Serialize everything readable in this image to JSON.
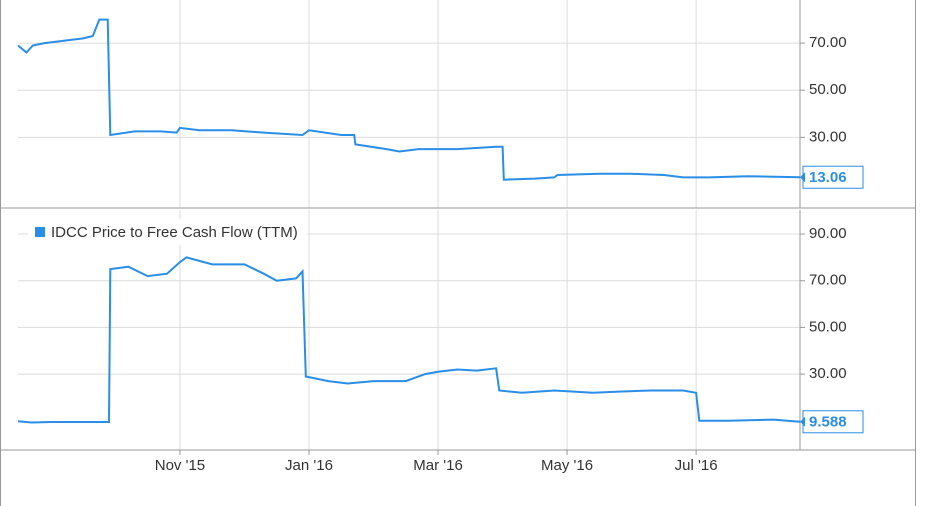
{
  "chart_data": [
    {
      "type": "line",
      "xlim": [
        8.49,
        20.61
      ],
      "ylim": [
        0,
        88.3
      ],
      "yticks": [
        {
          "value": 30,
          "label": "30.00"
        },
        {
          "value": 50,
          "label": "50.00"
        },
        {
          "value": 70,
          "label": "70.00"
        }
      ],
      "grid": true,
      "series": [
        {
          "color": "#2a8ee8",
          "x": [
            8.49,
            8.62,
            8.72,
            8.9,
            9.2,
            9.5,
            9.65,
            9.75,
            9.88,
            9.92,
            10.3,
            10.7,
            10.95,
            11.0,
            11.3,
            11.8,
            12.3,
            12.9,
            13.0,
            13.5,
            13.7,
            13.72,
            14.2,
            14.4,
            14.7,
            15.3,
            15.9,
            16.0,
            16.02,
            16.5,
            16.8,
            16.85,
            17.5,
            18.0,
            18.5,
            18.8,
            19.2,
            19.8,
            20.61
          ],
          "values": [
            69,
            66,
            69,
            70,
            71,
            72,
            73,
            80,
            80,
            31,
            32.5,
            32.5,
            32,
            34,
            33,
            33,
            32,
            31,
            33,
            31,
            31,
            27,
            25,
            24,
            25,
            25,
            26,
            26,
            12,
            12.5,
            13,
            14,
            14.5,
            14.5,
            14,
            13,
            13,
            13.5,
            13.06
          ]
        }
      ]
    },
    {
      "type": "line",
      "xlim": [
        8.49,
        20.61
      ],
      "ylim": [
        -2.5,
        100.3
      ],
      "xticks": [
        {
          "value": 11,
          "label": "Nov '15"
        },
        {
          "value": 13,
          "label": "Jan '16"
        },
        {
          "value": 15,
          "label": "Mar '16"
        },
        {
          "value": 17,
          "label": "May '16"
        },
        {
          "value": 19,
          "label": "Jul '16"
        }
      ],
      "yticks": [
        {
          "value": 30,
          "label": "30.00"
        },
        {
          "value": 50,
          "label": "50.00"
        },
        {
          "value": 70,
          "label": "70.00"
        },
        {
          "value": 90,
          "label": "90.00"
        }
      ],
      "grid": true,
      "series": [
        {
          "name": "IDCC Price to Free Cash Flow (TTM)",
          "color": "#2a8ee8",
          "x": [
            8.49,
            8.7,
            9.0,
            9.9,
            9.92,
            10.2,
            10.5,
            10.8,
            11.0,
            11.1,
            11.5,
            11.8,
            12.0,
            12.3,
            12.5,
            12.8,
            12.9,
            12.95,
            13.3,
            13.6,
            14.0,
            14.5,
            14.8,
            15.0,
            15.3,
            15.6,
            15.9,
            15.95,
            16.3,
            16.8,
            17.4,
            17.8,
            18.3,
            18.8,
            19.0,
            19.05,
            19.5,
            20.2,
            20.61
          ],
          "values": [
            9.8,
            9.3,
            9.5,
            9.5,
            75,
            76,
            72,
            73,
            78,
            80,
            77,
            77,
            77,
            73,
            70,
            71,
            74,
            29,
            27,
            26,
            27,
            27,
            30,
            31,
            32,
            31.5,
            32.5,
            23,
            22,
            23,
            22,
            22.5,
            23,
            23,
            22,
            10,
            10,
            10.5,
            9.588
          ]
        }
      ]
    }
  ]
}
